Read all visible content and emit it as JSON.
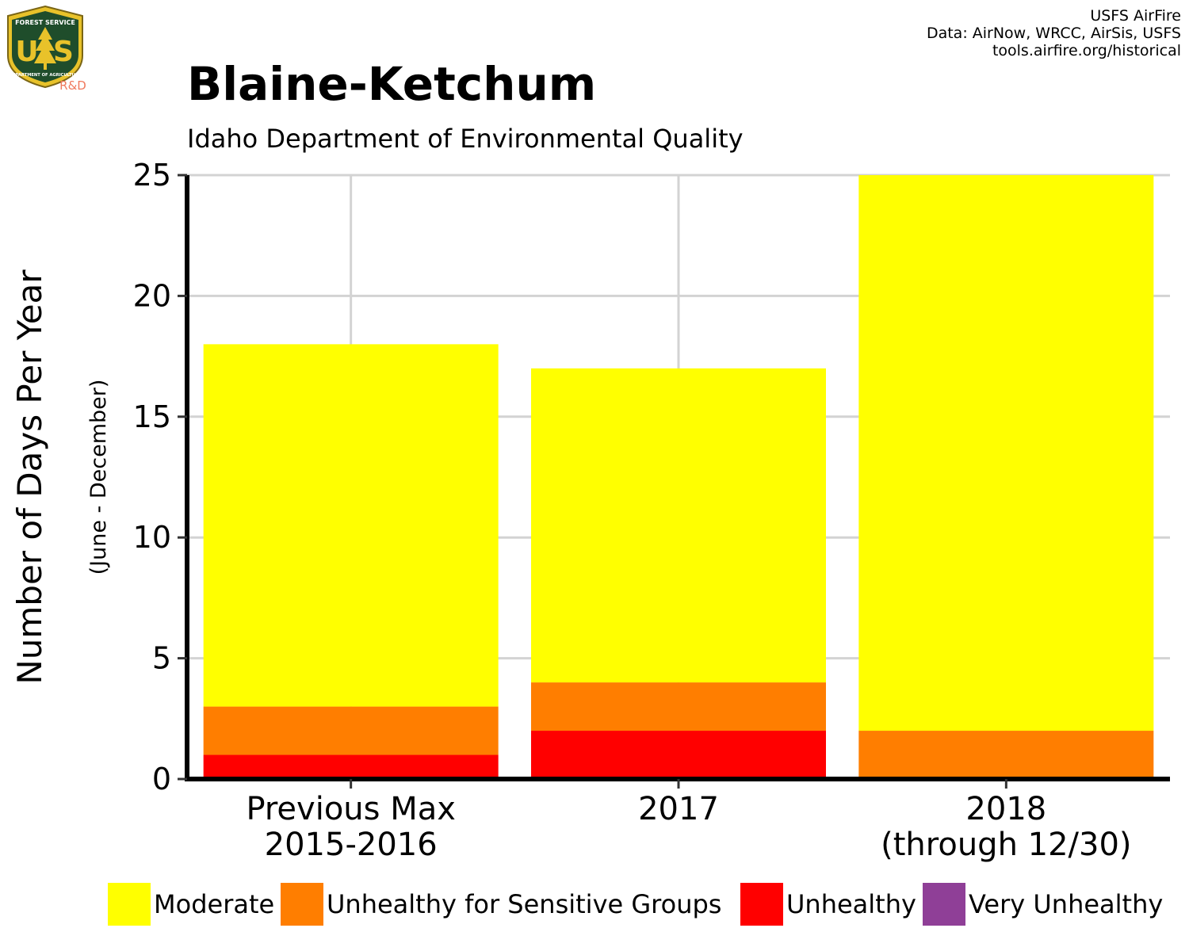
{
  "header": {
    "title": "Blaine-Ketchum",
    "subtitle": "Idaho Department of Environmental Quality",
    "credits": [
      "USFS AirFire",
      "Data: AirNow, WRCC, AirSis, USFS",
      "tools.airfire.org/historical"
    ]
  },
  "logo": {
    "top_text": "FOREST SERVICE",
    "left_letter": "U",
    "right_letter": "S",
    "bottom_text": "DEPARTMENT OF AGRICULTURE",
    "tag": "R&D",
    "colors": {
      "shield": "#1f4d2b",
      "border": "#e8c22a",
      "tag": "#f07a5e"
    }
  },
  "chart_data": {
    "type": "bar",
    "stacked": true,
    "categories": [
      [
        "Previous Max",
        "2015-2016"
      ],
      [
        "2017"
      ],
      [
        "2018",
        "(through 12/30)"
      ]
    ],
    "series": [
      {
        "name": "Unhealthy",
        "color": "#ff0000",
        "values": [
          1,
          2,
          0
        ]
      },
      {
        "name": "Unhealthy for Sensitive Groups",
        "color": "#ff7e00",
        "values": [
          2,
          2,
          2
        ]
      },
      {
        "name": "Moderate",
        "color": "#ffff00",
        "values": [
          15,
          13,
          23
        ]
      }
    ],
    "ylabel": "Number of Days Per Year",
    "ysublabel": "(June - December)",
    "ylim": [
      0,
      25
    ],
    "yticks": [
      0,
      5,
      10,
      15,
      20,
      25
    ],
    "grid": true,
    "legend_position": "bottom",
    "legend": [
      {
        "name": "Moderate",
        "color": "#ffff00"
      },
      {
        "name": "Unhealthy for Sensitive Groups",
        "color": "#ff7e00"
      },
      {
        "name": "Unhealthy",
        "color": "#ff0000"
      },
      {
        "name": "Very Unhealthy",
        "color": "#8f3f97"
      }
    ]
  }
}
